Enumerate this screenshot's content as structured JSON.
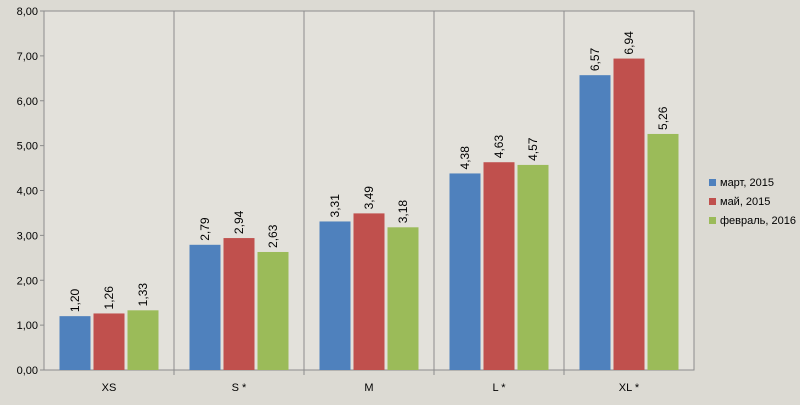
{
  "chart_data": {
    "type": "bar",
    "categories": [
      "XS",
      "S *",
      "M",
      "L *",
      "XL *"
    ],
    "series": [
      {
        "name": "март, 2015",
        "color": "#4f81bd",
        "values": [
          1.2,
          2.79,
          3.31,
          4.38,
          6.57
        ],
        "labels": [
          "1,20",
          "2,79",
          "3,31",
          "4,38",
          "6,57"
        ]
      },
      {
        "name": "май, 2015",
        "color": "#c0504d",
        "values": [
          1.26,
          2.94,
          3.49,
          4.63,
          6.94
        ],
        "labels": [
          "1,26",
          "2,94",
          "3,49",
          "4,63",
          "6,94"
        ]
      },
      {
        "name": "февраль, 2016",
        "color": "#9bbb59",
        "values": [
          1.33,
          2.63,
          3.18,
          4.57,
          5.26
        ],
        "labels": [
          "1,33",
          "2,63",
          "3,18",
          "4,57",
          "5,26"
        ]
      }
    ],
    "ylim": [
      0,
      8
    ],
    "yticks": [
      0,
      1,
      2,
      3,
      4,
      5,
      6,
      7,
      8
    ],
    "ytick_labels": [
      "0,00",
      "1,00",
      "2,00",
      "3,00",
      "4,00",
      "5,00",
      "6,00",
      "7,00",
      "8,00"
    ],
    "grid": "vertical category dividers",
    "legend": "right",
    "title": "",
    "xlabel": "",
    "ylabel": ""
  }
}
